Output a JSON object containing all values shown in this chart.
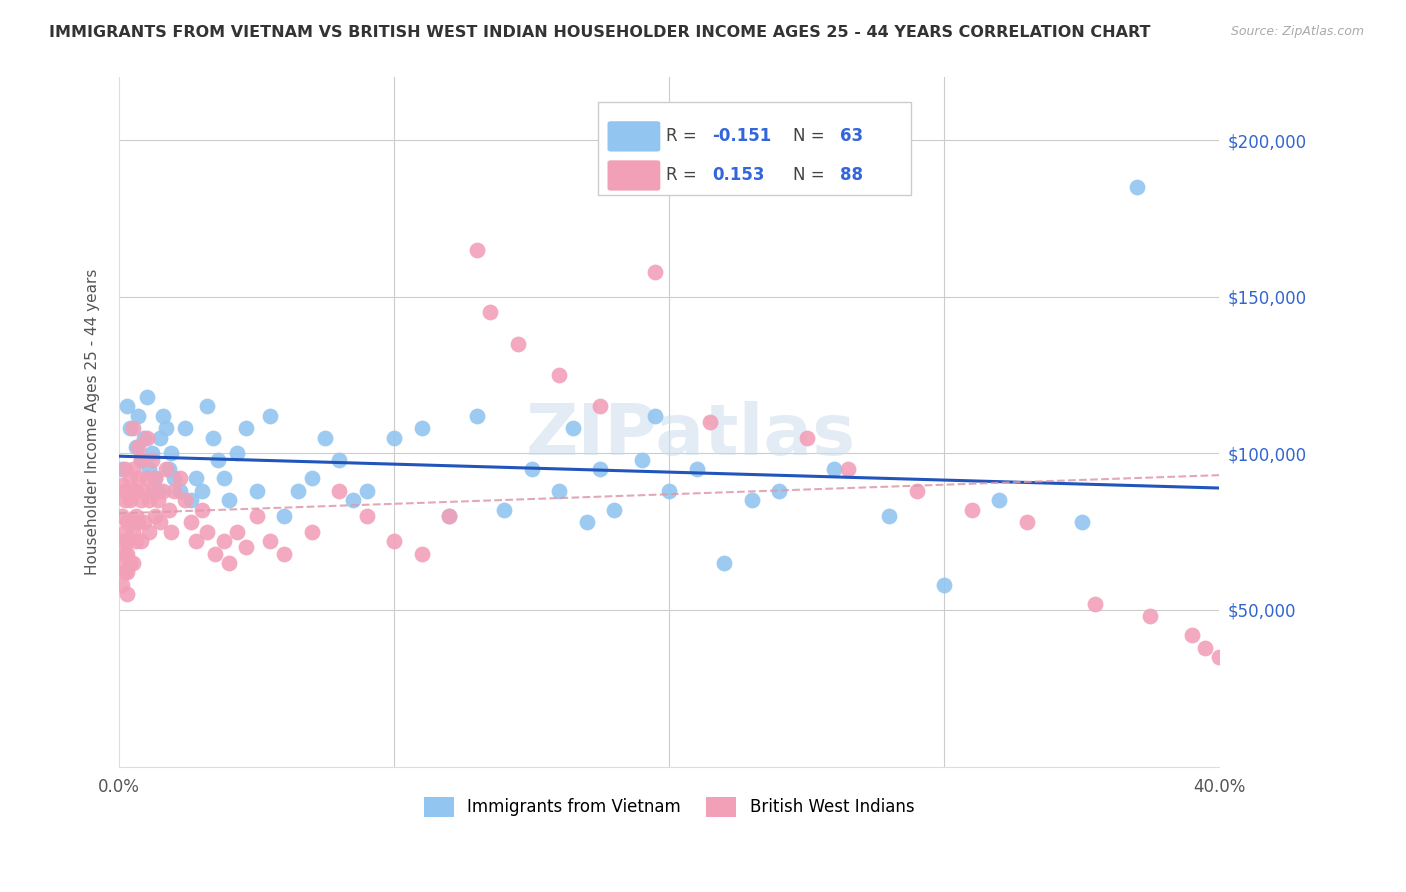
{
  "title": "IMMIGRANTS FROM VIETNAM VS BRITISH WEST INDIAN HOUSEHOLDER INCOME AGES 25 - 44 YEARS CORRELATION CHART",
  "source": "Source: ZipAtlas.com",
  "ylabel": "Householder Income Ages 25 - 44 years",
  "xlim": [
    0.0,
    0.4
  ],
  "ylim": [
    0,
    220000
  ],
  "ytick_positions": [
    0,
    50000,
    100000,
    150000,
    200000
  ],
  "ytick_labels": [
    "",
    "$50,000",
    "$100,000",
    "$150,000",
    "$200,000"
  ],
  "xtick_positions": [
    0.0,
    0.1,
    0.2,
    0.3,
    0.4
  ],
  "xtick_labels": [
    "0.0%",
    "",
    "",
    "",
    "40.0%"
  ],
  "vietnam_color": "#92C5F0",
  "bwi_color": "#F2A0B8",
  "vietnam_R": -0.151,
  "vietnam_N": 63,
  "bwi_R": 0.153,
  "bwi_N": 88,
  "vietnam_line_color": "#2255BB",
  "bwi_line_color": "#DD99AA",
  "watermark": "ZIPatlas",
  "legend_R_color": "#3366DD",
  "vietnam_x": [
    0.001,
    0.003,
    0.004,
    0.006,
    0.007,
    0.008,
    0.009,
    0.01,
    0.011,
    0.012,
    0.013,
    0.014,
    0.015,
    0.016,
    0.017,
    0.018,
    0.019,
    0.02,
    0.022,
    0.024,
    0.026,
    0.028,
    0.03,
    0.032,
    0.034,
    0.036,
    0.038,
    0.04,
    0.043,
    0.046,
    0.05,
    0.055,
    0.06,
    0.065,
    0.07,
    0.075,
    0.08,
    0.085,
    0.09,
    0.1,
    0.11,
    0.12,
    0.13,
    0.14,
    0.15,
    0.16,
    0.165,
    0.17,
    0.175,
    0.18,
    0.19,
    0.195,
    0.2,
    0.21,
    0.22,
    0.23,
    0.24,
    0.26,
    0.28,
    0.3,
    0.32,
    0.35,
    0.37
  ],
  "vietnam_y": [
    95000,
    115000,
    108000,
    102000,
    112000,
    98000,
    105000,
    118000,
    95000,
    100000,
    92000,
    88000,
    105000,
    112000,
    108000,
    95000,
    100000,
    92000,
    88000,
    108000,
    85000,
    92000,
    88000,
    115000,
    105000,
    98000,
    92000,
    85000,
    100000,
    108000,
    88000,
    112000,
    80000,
    88000,
    92000,
    105000,
    98000,
    85000,
    88000,
    105000,
    108000,
    80000,
    112000,
    82000,
    95000,
    88000,
    108000,
    78000,
    95000,
    82000,
    98000,
    112000,
    88000,
    95000,
    65000,
    85000,
    88000,
    95000,
    80000,
    58000,
    85000,
    78000,
    185000
  ],
  "bwi_x": [
    0.001,
    0.001,
    0.001,
    0.001,
    0.001,
    0.002,
    0.002,
    0.002,
    0.002,
    0.002,
    0.002,
    0.003,
    0.003,
    0.003,
    0.003,
    0.003,
    0.004,
    0.004,
    0.004,
    0.004,
    0.005,
    0.005,
    0.005,
    0.005,
    0.005,
    0.006,
    0.006,
    0.006,
    0.007,
    0.007,
    0.007,
    0.008,
    0.008,
    0.008,
    0.009,
    0.009,
    0.01,
    0.01,
    0.011,
    0.011,
    0.012,
    0.012,
    0.013,
    0.013,
    0.014,
    0.015,
    0.016,
    0.017,
    0.018,
    0.019,
    0.02,
    0.022,
    0.024,
    0.026,
    0.028,
    0.03,
    0.032,
    0.035,
    0.038,
    0.04,
    0.043,
    0.046,
    0.05,
    0.055,
    0.06,
    0.07,
    0.08,
    0.09,
    0.1,
    0.11,
    0.12,
    0.13,
    0.135,
    0.145,
    0.16,
    0.175,
    0.195,
    0.215,
    0.25,
    0.265,
    0.29,
    0.31,
    0.33,
    0.355,
    0.375,
    0.39,
    0.395,
    0.4
  ],
  "bwi_y": [
    72000,
    65000,
    58000,
    80000,
    90000,
    88000,
    75000,
    68000,
    62000,
    95000,
    85000,
    78000,
    68000,
    62000,
    72000,
    55000,
    85000,
    78000,
    65000,
    92000,
    88000,
    75000,
    65000,
    95000,
    108000,
    80000,
    72000,
    88000,
    102000,
    92000,
    78000,
    85000,
    98000,
    72000,
    88000,
    78000,
    105000,
    92000,
    85000,
    75000,
    98000,
    88000,
    80000,
    92000,
    85000,
    78000,
    88000,
    95000,
    82000,
    75000,
    88000,
    92000,
    85000,
    78000,
    72000,
    82000,
    75000,
    68000,
    72000,
    65000,
    75000,
    70000,
    80000,
    72000,
    68000,
    75000,
    88000,
    80000,
    72000,
    68000,
    80000,
    165000,
    145000,
    135000,
    125000,
    115000,
    158000,
    110000,
    105000,
    95000,
    88000,
    82000,
    78000,
    52000,
    48000,
    42000,
    38000,
    35000
  ]
}
